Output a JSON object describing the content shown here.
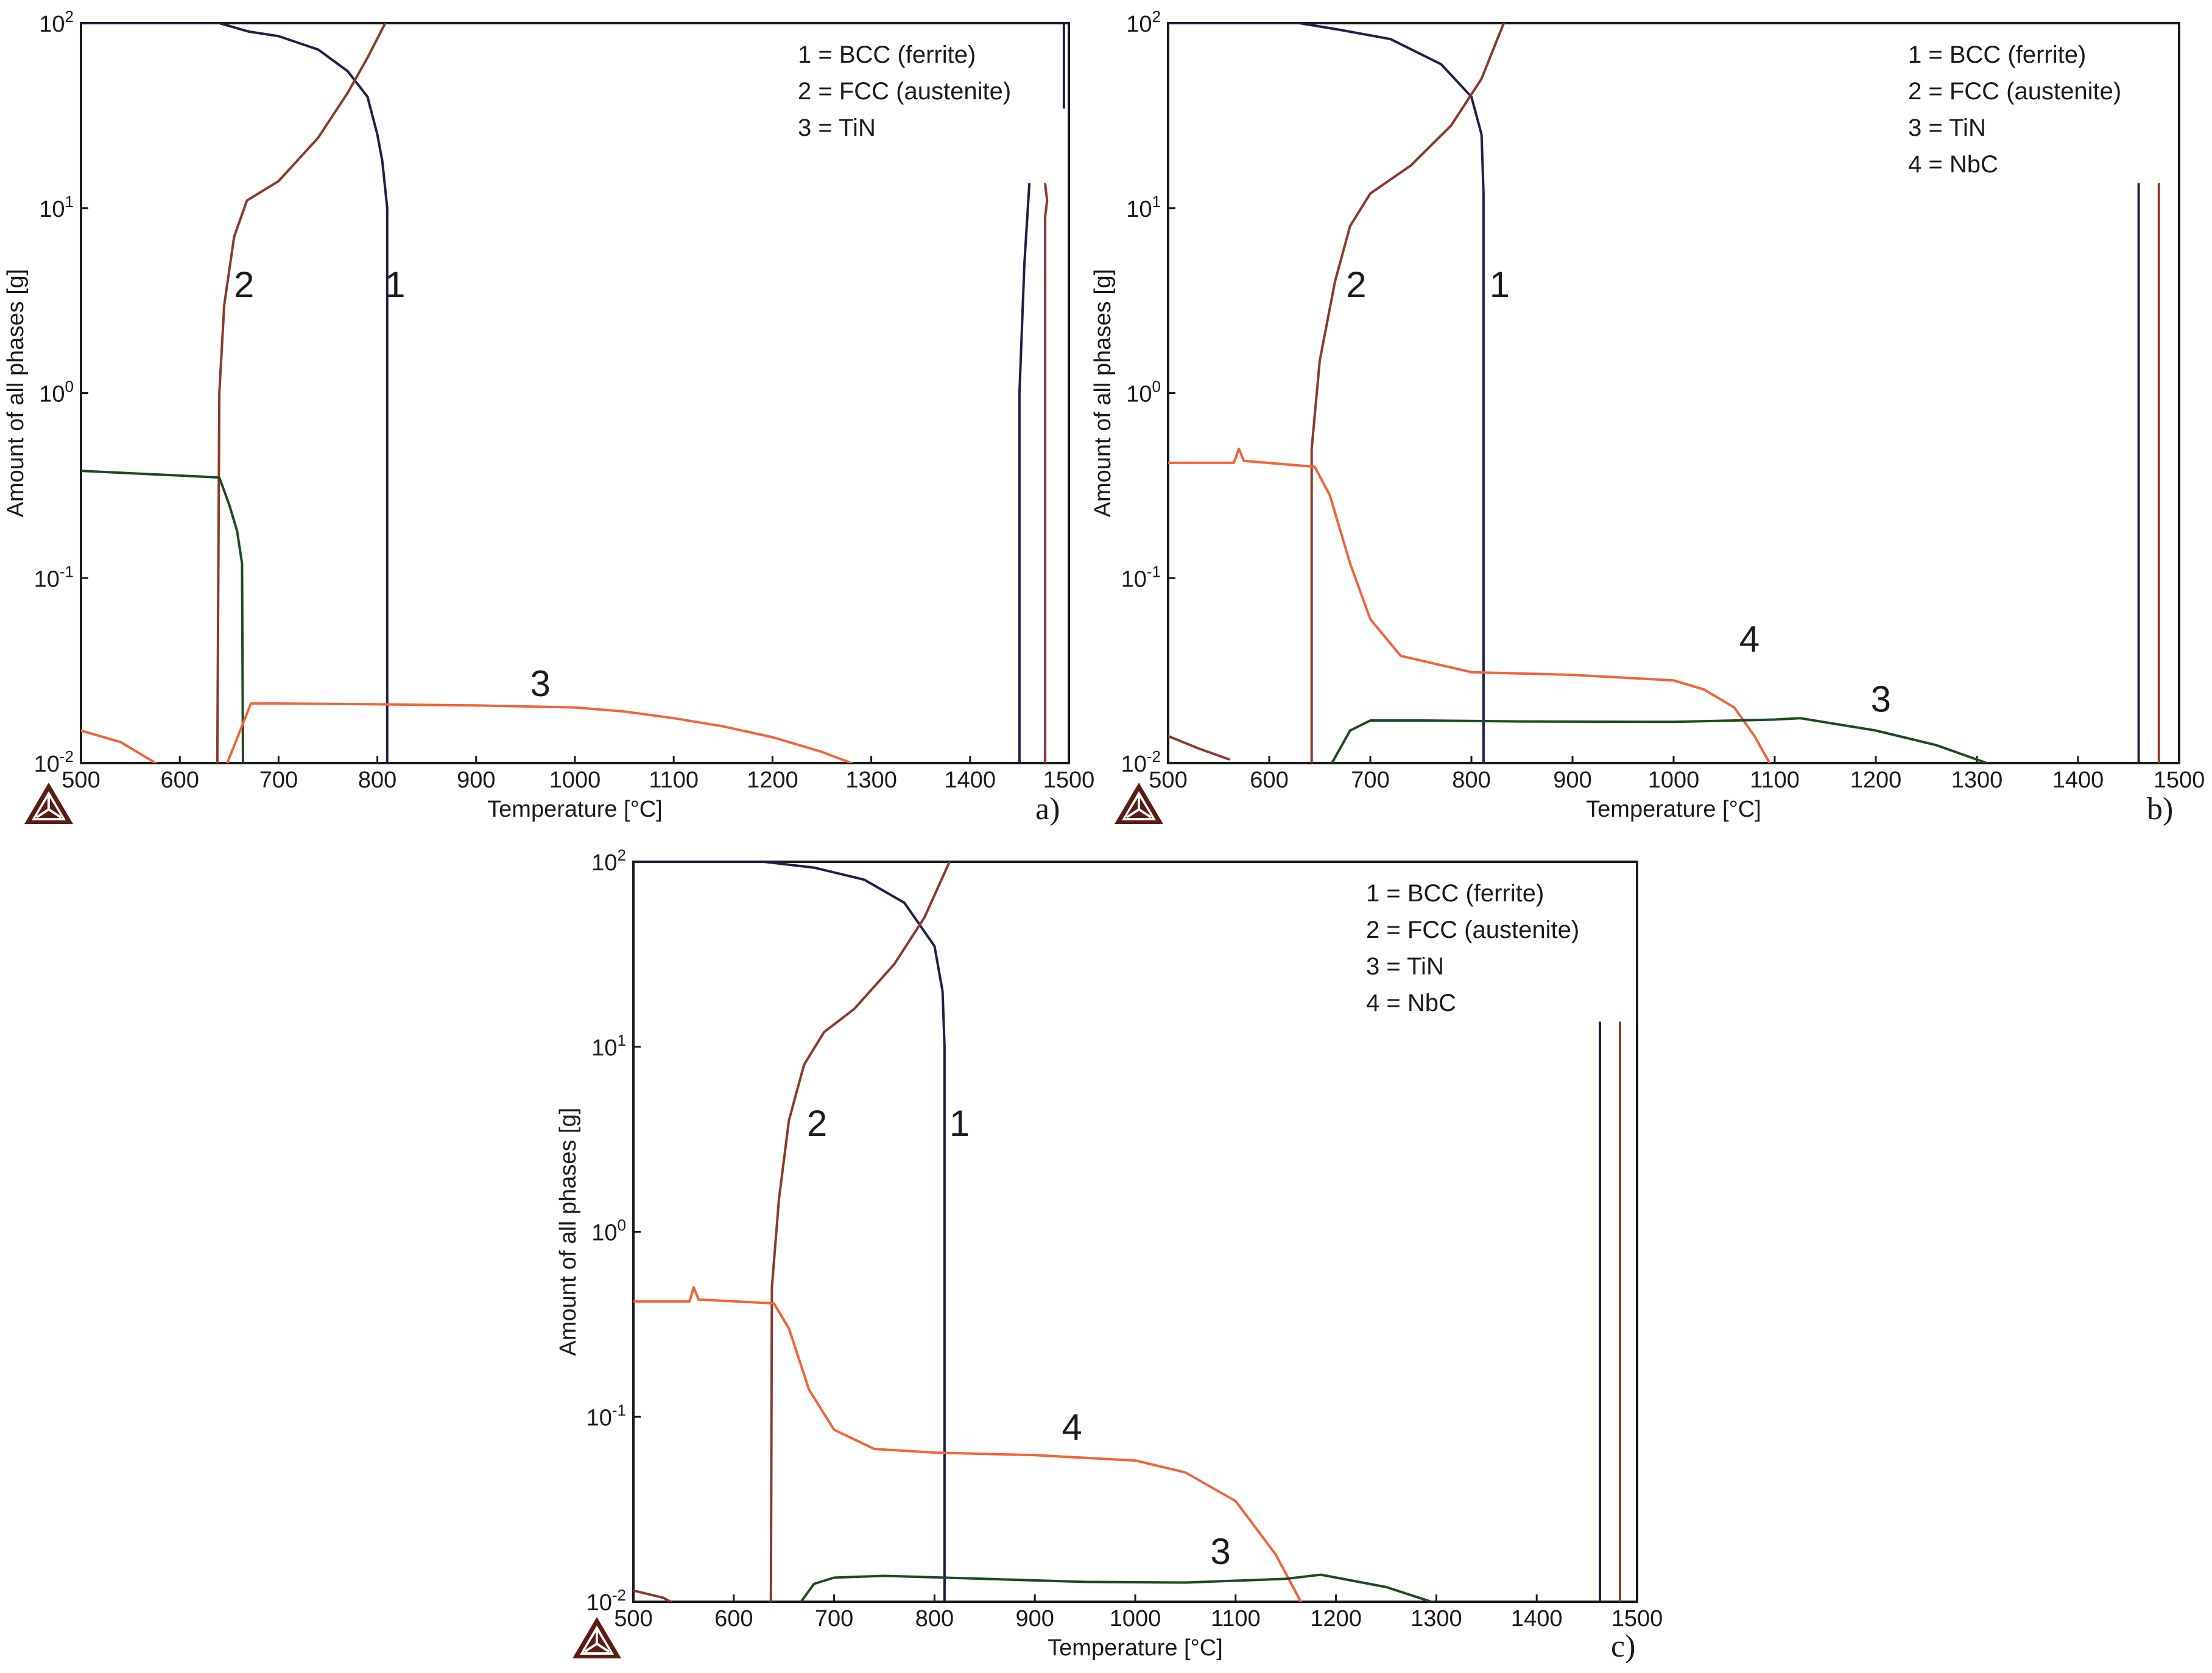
{
  "colors": {
    "bcc": "#1f1f4a",
    "fcc": "#8a3a2c",
    "tin": "#1d4a22",
    "nbc": "#f0643a",
    "axis": "#1a1a1a",
    "logo": "#5a1c14"
  },
  "icons": {
    "logo": "thermo-calc-triangle-logo"
  },
  "chart_data": [
    {
      "type": "line",
      "panel_label": "a)",
      "xlabel": "Temperature [°C]",
      "ylabel": "Amount of all phases [g]",
      "xlim": [
        500,
        1500
      ],
      "ylim": [
        0.01,
        100
      ],
      "yscale": "log",
      "xticks": [
        "500",
        "600",
        "700",
        "800",
        "900",
        "1000",
        "1100",
        "1200",
        "1300",
        "1400",
        "1500"
      ],
      "yticks": [
        {
          "base": "10",
          "exp": "2",
          "value": 100
        },
        {
          "base": "10",
          "exp": "1",
          "value": 10
        },
        {
          "base": "10",
          "exp": "0",
          "value": 1
        },
        {
          "base": "10",
          "exp": "-1",
          "value": 0.1
        },
        {
          "base": "10",
          "exp": "-2",
          "value": 0.01
        }
      ],
      "legend": [
        "1 = BCC (ferrite)",
        "2 = FCC (austenite)",
        "3 = TiN"
      ],
      "legend_position": "top-right",
      "series": [
        {
          "key": "bcc",
          "color_key": "bcc",
          "points": [
            [
              500,
              100
            ],
            [
              640,
              100
            ],
            [
              670,
              90
            ],
            [
              700,
              85
            ],
            [
              740,
              72
            ],
            [
              770,
              55
            ],
            [
              790,
              40
            ],
            [
              800,
              25
            ],
            [
              805,
              18
            ],
            [
              810,
              10
            ],
            [
              810,
              0.01
            ]
          ]
        },
        {
          "key": "fcc",
          "color_key": "fcc",
          "points": [
            [
              638,
              0.01
            ],
            [
              640,
              1.0
            ],
            [
              645,
              3
            ],
            [
              655,
              7
            ],
            [
              668,
              11
            ],
            [
              700,
              14
            ],
            [
              740,
              24
            ],
            [
              770,
              42
            ],
            [
              790,
              65
            ],
            [
              808,
              100
            ]
          ]
        },
        {
          "key": "tin_low",
          "color_key": "tin",
          "points": [
            [
              500,
              0.38
            ],
            [
              640,
              0.35
            ],
            [
              650,
              0.25
            ],
            [
              658,
              0.18
            ],
            [
              663,
              0.12
            ],
            [
              664,
              0.01
            ]
          ]
        },
        {
          "key": "red_low",
          "color_key": "nbc",
          "points": [
            [
              500,
              0.015
            ],
            [
              540,
              0.013
            ],
            [
              590,
              0.009
            ]
          ]
        },
        {
          "key": "tin_curve",
          "color_key": "nbc",
          "points": [
            [
              648,
              0.01
            ],
            [
              672,
              0.021
            ],
            [
              700,
              0.021
            ],
            [
              800,
              0.0208
            ],
            [
              900,
              0.0205
            ],
            [
              1000,
              0.02
            ],
            [
              1050,
              0.019
            ],
            [
              1100,
              0.0175
            ],
            [
              1150,
              0.0158
            ],
            [
              1200,
              0.0138
            ],
            [
              1250,
              0.0115
            ],
            [
              1280,
              0.01
            ]
          ]
        },
        {
          "key": "bcc_ht",
          "color_key": "bcc",
          "points": [
            [
              1450,
              0.01
            ],
            [
              1450,
              1.0
            ],
            [
              1455,
              5
            ],
            [
              1460,
              13.5
            ]
          ]
        },
        {
          "key": "fcc_ht",
          "color_key": "fcc",
          "points": [
            [
              1476,
              0.01
            ],
            [
              1476,
              9
            ],
            [
              1478,
              11
            ],
            [
              1476,
              13.5
            ]
          ]
        },
        {
          "key": "bcc_ht_top",
          "color_key": "bcc",
          "points": [
            [
              1495,
              35
            ],
            [
              1495,
              100
            ]
          ]
        }
      ],
      "curve_labels": [
        {
          "text": "2",
          "x": 665,
          "y": 3.3
        },
        {
          "text": "1",
          "x": 818,
          "y": 3.3
        },
        {
          "text": "3",
          "x": 965,
          "y": 0.023
        }
      ]
    },
    {
      "type": "line",
      "panel_label": "b)",
      "xlabel": "Temperature [°C]",
      "ylabel": "Amount of all phases [g]",
      "xlim": [
        500,
        1500
      ],
      "ylim": [
        0.01,
        100
      ],
      "yscale": "log",
      "xticks": [
        "500",
        "600",
        "700",
        "800",
        "900",
        "1000",
        "1100",
        "1200",
        "1300",
        "1400",
        "1500"
      ],
      "yticks": [
        {
          "base": "10",
          "exp": "2",
          "value": 100
        },
        {
          "base": "10",
          "exp": "1",
          "value": 10
        },
        {
          "base": "10",
          "exp": "0",
          "value": 1
        },
        {
          "base": "10",
          "exp": "-1",
          "value": 0.1
        },
        {
          "base": "10",
          "exp": "-2",
          "value": 0.01
        }
      ],
      "legend": [
        "1 = BCC (ferrite)",
        "2 = FCC (austenite)",
        "3 = TiN",
        "4 = NbC"
      ],
      "legend_position": "top-right",
      "series": [
        {
          "key": "bcc",
          "color_key": "bcc",
          "points": [
            [
              500,
              100
            ],
            [
              630,
              100
            ],
            [
              670,
              92
            ],
            [
              720,
              82
            ],
            [
              770,
              60
            ],
            [
              800,
              40
            ],
            [
              810,
              25
            ],
            [
              812,
              12
            ],
            [
              812,
              0.01
            ]
          ]
        },
        {
          "key": "fcc",
          "color_key": "fcc",
          "points": [
            [
              642,
              0.01
            ],
            [
              642,
              0.5
            ],
            [
              650,
              1.5
            ],
            [
              665,
              4
            ],
            [
              680,
              8
            ],
            [
              700,
              12
            ],
            [
              740,
              17
            ],
            [
              780,
              28
            ],
            [
              810,
              50
            ],
            [
              832,
              100
            ]
          ]
        },
        {
          "key": "nbc",
          "color_key": "nbc",
          "points": [
            [
              500,
              0.42
            ],
            [
              565,
              0.42
            ],
            [
              570,
              0.5
            ],
            [
              575,
              0.43
            ],
            [
              645,
              0.4
            ],
            [
              660,
              0.28
            ],
            [
              680,
              0.12
            ],
            [
              700,
              0.06
            ],
            [
              730,
              0.038
            ],
            [
              800,
              0.031
            ],
            [
              900,
              0.03
            ],
            [
              1000,
              0.028
            ],
            [
              1030,
              0.025
            ],
            [
              1060,
              0.02
            ],
            [
              1080,
              0.014
            ],
            [
              1095,
              0.01
            ]
          ]
        },
        {
          "key": "tin",
          "color_key": "tin",
          "points": [
            [
              662,
              0.01
            ],
            [
              680,
              0.015
            ],
            [
              700,
              0.017
            ],
            [
              750,
              0.017
            ],
            [
              850,
              0.0168
            ],
            [
              1000,
              0.0167
            ],
            [
              1100,
              0.0172
            ],
            [
              1125,
              0.0175
            ],
            [
              1200,
              0.015
            ],
            [
              1260,
              0.0125
            ],
            [
              1310,
              0.01
            ]
          ]
        },
        {
          "key": "red_low",
          "color_key": "fcc",
          "points": [
            [
              500,
              0.014
            ],
            [
              530,
              0.012
            ],
            [
              560,
              0.0105
            ]
          ]
        },
        {
          "key": "bcc_ht",
          "color_key": "bcc",
          "points": [
            [
              1460,
              0.01
            ],
            [
              1460,
              13.5
            ]
          ]
        },
        {
          "key": "fcc_ht",
          "color_key": "fcc",
          "points": [
            [
              1480,
              0.01
            ],
            [
              1480,
              13.5
            ]
          ]
        }
      ],
      "curve_labels": [
        {
          "text": "2",
          "x": 686,
          "y": 3.3
        },
        {
          "text": "1",
          "x": 828,
          "y": 3.3
        },
        {
          "text": "4",
          "x": 1075,
          "y": 0.04
        },
        {
          "text": "3",
          "x": 1205,
          "y": 0.019
        }
      ]
    },
    {
      "type": "line",
      "panel_label": "c)",
      "xlabel": "Temperature [°C]",
      "ylabel": "Amount of all phases [g]",
      "xlim": [
        500,
        1500
      ],
      "ylim": [
        0.01,
        100
      ],
      "yscale": "log",
      "xticks": [
        "500",
        "600",
        "700",
        "800",
        "900",
        "1000",
        "1100",
        "1200",
        "1300",
        "1400",
        "1500"
      ],
      "yticks": [
        {
          "base": "10",
          "exp": "2",
          "value": 100
        },
        {
          "base": "10",
          "exp": "1",
          "value": 10
        },
        {
          "base": "10",
          "exp": "0",
          "value": 1
        },
        {
          "base": "10",
          "exp": "-1",
          "value": 0.1
        },
        {
          "base": "10",
          "exp": "-2",
          "value": 0.01
        }
      ],
      "legend": [
        "1 = BCC (ferrite)",
        "2 = FCC (austenite)",
        "3 = TiN",
        "4 = NbC"
      ],
      "legend_position": "top-right",
      "series": [
        {
          "key": "bcc",
          "color_key": "bcc",
          "points": [
            [
              500,
              100
            ],
            [
              630,
              100
            ],
            [
              680,
              93
            ],
            [
              730,
              80
            ],
            [
              770,
              60
            ],
            [
              800,
              35
            ],
            [
              808,
              20
            ],
            [
              810,
              10
            ],
            [
              810,
              0.01
            ]
          ]
        },
        {
          "key": "fcc",
          "color_key": "fcc",
          "points": [
            [
              637,
              0.01
            ],
            [
              638,
              0.5
            ],
            [
              645,
              1.5
            ],
            [
              655,
              4
            ],
            [
              670,
              8
            ],
            [
              690,
              12
            ],
            [
              720,
              16
            ],
            [
              760,
              28
            ],
            [
              790,
              50
            ],
            [
              815,
              100
            ]
          ]
        },
        {
          "key": "nbc",
          "color_key": "nbc",
          "points": [
            [
              500,
              0.42
            ],
            [
              556,
              0.42
            ],
            [
              560,
              0.5
            ],
            [
              565,
              0.43
            ],
            [
              640,
              0.41
            ],
            [
              655,
              0.3
            ],
            [
              675,
              0.14
            ],
            [
              700,
              0.085
            ],
            [
              740,
              0.067
            ],
            [
              800,
              0.064
            ],
            [
              900,
              0.062
            ],
            [
              1000,
              0.058
            ],
            [
              1050,
              0.05
            ],
            [
              1100,
              0.035
            ],
            [
              1140,
              0.018
            ],
            [
              1165,
              0.01
            ]
          ]
        },
        {
          "key": "tin",
          "color_key": "tin",
          "points": [
            [
              667,
              0.01
            ],
            [
              680,
              0.0125
            ],
            [
              700,
              0.0135
            ],
            [
              750,
              0.0138
            ],
            [
              850,
              0.0133
            ],
            [
              950,
              0.0128
            ],
            [
              1050,
              0.0127
            ],
            [
              1150,
              0.0133
            ],
            [
              1185,
              0.014
            ],
            [
              1250,
              0.012
            ],
            [
              1300,
              0.0098
            ]
          ]
        },
        {
          "key": "red_low",
          "color_key": "fcc",
          "points": [
            [
              500,
              0.0115
            ],
            [
              530,
              0.0105
            ],
            [
              540,
              0.0098
            ]
          ]
        },
        {
          "key": "bcc_ht",
          "color_key": "bcc",
          "points": [
            [
              1463,
              0.01
            ],
            [
              1463,
              13.5
            ]
          ]
        },
        {
          "key": "fcc_ht",
          "color_key": "fcc",
          "points": [
            [
              1483,
              0.01
            ],
            [
              1483,
              13.5
            ]
          ]
        }
      ],
      "curve_labels": [
        {
          "text": "2",
          "x": 683,
          "y": 3.3
        },
        {
          "text": "1",
          "x": 825,
          "y": 3.3
        },
        {
          "text": "4",
          "x": 937,
          "y": 0.075
        },
        {
          "text": "3",
          "x": 1085,
          "y": 0.016
        }
      ]
    }
  ]
}
